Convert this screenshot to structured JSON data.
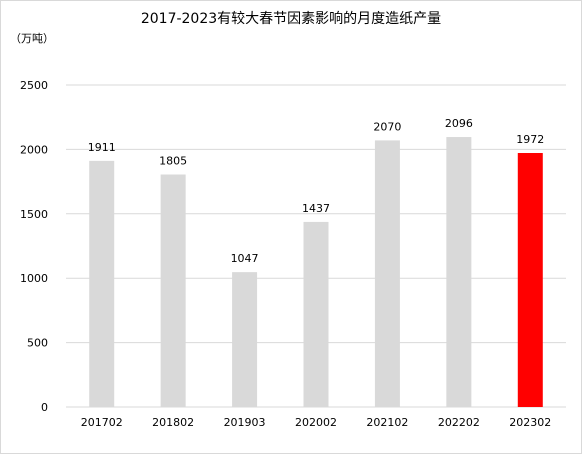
{
  "chart_data": {
    "type": "bar",
    "title": "2017-2023有较大春节因素影响的月度造纸产量",
    "unit_label": "（万吨）",
    "categories": [
      "201702",
      "201802",
      "201903",
      "202002",
      "202102",
      "202202",
      "202302"
    ],
    "values": [
      1911,
      1805,
      1047,
      1437,
      2070,
      2096,
      1972
    ],
    "ylim": [
      0,
      2500
    ],
    "yticks": [
      0,
      500,
      1000,
      1500,
      2000,
      2500
    ],
    "grid": true,
    "colors": {
      "default": "#d9d9d9",
      "highlight": "#ff0000",
      "grid": "#d9d9d9"
    },
    "highlight_index": 6
  }
}
